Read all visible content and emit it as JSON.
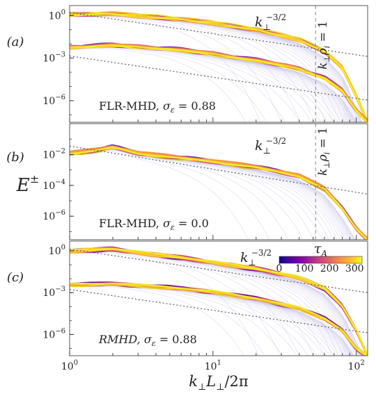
{
  "chart_data": [
    {
      "type": "line",
      "panel_label": "(a)",
      "annotation": "FLR-MHD, σ_ε = 0.88",
      "annotation_parts": {
        "model": "FLR-MHD",
        "sigma_symbol": "σ",
        "sigma_sub": "ε",
        "sigma_value": "= 0.88"
      },
      "x_scale": "log",
      "y_scale": "log",
      "xlim": [
        1,
        120
      ],
      "ylim": [
        3e-08,
        5
      ],
      "yticks": [
        1,
        0.001,
        1e-06
      ],
      "ytick_labels": [
        {
          "base": "10",
          "exp": "0"
        },
        {
          "base": "10",
          "exp": "−3"
        },
        {
          "base": "10",
          "exp": "−6"
        }
      ],
      "reference_line_label": {
        "base": "k",
        "sub": "⊥",
        "exp": "−3/2"
      },
      "vertical_marker": {
        "x": 52,
        "label": "k⊥ρi = 1",
        "label_parts": {
          "k": "k",
          "sub1": "⊥",
          "rho": "ρ",
          "sub2": "i",
          "rest": " = 1"
        }
      },
      "series": [
        {
          "x": [
            1,
            2,
            5,
            10,
            20,
            40,
            60,
            80,
            100,
            120
          ],
          "y": [
            1.2,
            1.3,
            0.65,
            0.3,
            0.1,
            0.02,
            0.003,
            0.0002,
            2e-06,
            3e-08
          ]
        },
        {
          "x": [
            1,
            2,
            5,
            10,
            20,
            40,
            60,
            80,
            100,
            120
          ],
          "y": [
            0.006,
            0.008,
            0.0045,
            0.002,
            0.0007,
            0.00018,
            4e-05,
            5e-06,
            2e-07,
            3e-08
          ]
        }
      ],
      "reference_lines": [
        {
          "x": [
            1,
            120
          ],
          "y": [
            1.6,
            0.0013
          ]
        },
        {
          "x": [
            1,
            120
          ],
          "y": [
            0.0014,
            1.1e-06
          ]
        }
      ]
    },
    {
      "type": "line",
      "panel_label": "(b)",
      "annotation": "FLR-MHD, σ_ε = 0.0",
      "annotation_parts": {
        "model": "FLR-MHD",
        "sigma_symbol": "σ",
        "sigma_sub": "ε",
        "sigma_value": "= 0.0"
      },
      "x_scale": "log",
      "y_scale": "log",
      "xlim": [
        1,
        120
      ],
      "ylim": [
        3e-08,
        1
      ],
      "yticks": [
        0.01,
        0.0001,
        1e-06
      ],
      "ytick_labels": [
        {
          "base": "10",
          "exp": "−2"
        },
        {
          "base": "10",
          "exp": "−4"
        },
        {
          "base": "10",
          "exp": "−6"
        }
      ],
      "reference_line_label": {
        "base": "k",
        "sub": "⊥",
        "exp": "−3/2"
      },
      "vertical_marker": {
        "x": 52,
        "label": "k⊥ρi = 1",
        "label_parts": {
          "k": "k",
          "sub1": "⊥",
          "rho": "ρ",
          "sub2": "i",
          "rest": " = 1"
        }
      },
      "series": [
        {
          "x": [
            1,
            1.5,
            2,
            3,
            5,
            10,
            20,
            40,
            60,
            80,
            100,
            120
          ],
          "y": [
            0.012,
            0.018,
            0.03,
            0.012,
            0.007,
            0.0035,
            0.0015,
            0.0004,
            6e-05,
            3e-06,
            1.5e-07,
            3e-08
          ]
        }
      ],
      "reference_lines": [
        {
          "x": [
            1,
            120
          ],
          "y": [
            0.035,
            2.7e-05
          ]
        }
      ]
    },
    {
      "type": "line",
      "panel_label": "(c)",
      "annotation": "RMHD, σ_ε = 0.88",
      "annotation_parts": {
        "model": "RMHD",
        "sigma_symbol": "σ",
        "sigma_sub": "ε",
        "sigma_value": "= 0.88"
      },
      "x_scale": "log",
      "y_scale": "log",
      "xlim": [
        1,
        120
      ],
      "ylim": [
        3e-08,
        5
      ],
      "xticks": [
        1,
        10,
        100
      ],
      "xtick_labels": [
        {
          "base": "10",
          "exp": "0"
        },
        {
          "base": "10",
          "exp": "1"
        },
        {
          "base": "10",
          "exp": "2"
        }
      ],
      "xlabel": "k⊥L⊥/2π",
      "xlabel_parts": {
        "k": "k",
        "sub1": "⊥",
        "L": "L",
        "sub2": "⊥",
        "rest": "/2π"
      },
      "yticks": [
        1,
        0.001,
        1e-06
      ],
      "ytick_labels": [
        {
          "base": "10",
          "exp": "0"
        },
        {
          "base": "10",
          "exp": "−3"
        },
        {
          "base": "10",
          "exp": "−6"
        }
      ],
      "reference_line_label": {
        "base": "k",
        "sub": "⊥",
        "exp": "−3/2"
      },
      "colorbar": {
        "label": "τ_A",
        "label_parts": {
          "base": "τ",
          "sub": "A"
        },
        "ticks": [
          0,
          100,
          200,
          300
        ],
        "range": [
          0,
          330
        ],
        "colormap": [
          "#0d0887",
          "#41049d",
          "#6a00a8",
          "#8f0da4",
          "#b12a90",
          "#cc4778",
          "#e16462",
          "#f2844b",
          "#fca636",
          "#fcce25",
          "#f0f921"
        ]
      },
      "series": [
        {
          "x": [
            1,
            2,
            5,
            10,
            20,
            40,
            60,
            80,
            100,
            120
          ],
          "y": [
            1.0,
            1.3,
            0.4,
            0.15,
            0.05,
            0.012,
            0.002,
            0.0001,
            2e-06,
            3e-08
          ]
        },
        {
          "x": [
            1,
            2,
            5,
            10,
            20,
            40,
            60,
            80,
            100,
            120
          ],
          "y": [
            0.004,
            0.0045,
            0.0025,
            0.0012,
            0.0004,
            8e-05,
            1.5e-05,
            2e-06,
            1e-07,
            3e-08
          ]
        }
      ],
      "reference_lines": [
        {
          "x": [
            1,
            120
          ],
          "y": [
            1.3,
            0.001
          ]
        },
        {
          "x": [
            1,
            120
          ],
          "y": [
            0.0017,
            1.3e-06
          ]
        }
      ]
    }
  ],
  "shared": {
    "ylabel": {
      "base": "E",
      "exp": "±"
    },
    "colors": {
      "dark": "#3b1a8f",
      "light": "#c7c1e8",
      "warm": "#f5cf3a",
      "hot": "#e8408a",
      "dashed": "#888888",
      "frame": "#555555"
    }
  }
}
